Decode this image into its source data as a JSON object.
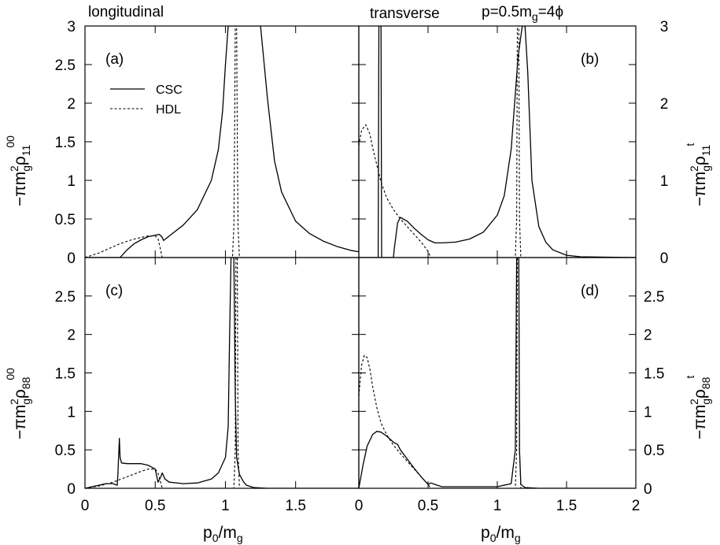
{
  "header": {
    "left_title": "longitudinal",
    "right_title": "transverse",
    "param_prefix": "p=0.5m",
    "param_sub": "g",
    "param_suffix": "=4ϕ"
  },
  "axes": {
    "x_label_main": "p",
    "x_label_sub0": "0",
    "x_label_mid": "/m",
    "x_label_subg": "g",
    "y_labels": {
      "a": {
        "pre": "−πm",
        "sub": "g",
        "sup": "2",
        "rho": "ρ",
        "idx": "11",
        "upper": "00"
      },
      "b": {
        "pre": "−πm",
        "sub": "g",
        "sup": "2",
        "rho": "ρ",
        "idx": "11",
        "upper": "t"
      },
      "c": {
        "pre": "−πm",
        "sub": "g",
        "sup": "2",
        "rho": "ρ",
        "idx": "88",
        "upper": "00"
      },
      "d": {
        "pre": "−πm",
        "sub": "g",
        "sup": "2",
        "rho": "ρ",
        "idx": "88",
        "upper": "t"
      }
    },
    "x_ticks_left": [
      "0",
      "0.5",
      "1",
      "1.5"
    ],
    "x_ticks_right": [
      "0",
      "0.5",
      "1",
      "1.5",
      "2"
    ],
    "y_ticks_top": [
      "0",
      "0.5",
      "1",
      "1.5",
      "2",
      "2.5",
      "3"
    ],
    "y_ticks_top_right": [
      "0",
      "1",
      "2",
      "3"
    ],
    "y_ticks_bottom": [
      "0",
      "0.5",
      "1",
      "1.5",
      "2",
      "2.5"
    ]
  },
  "legend": {
    "csc": "CSC",
    "hdl": "HDL"
  },
  "chart_data": [
    {
      "panel": "(a)",
      "type": "line",
      "xlim": [
        0,
        2
      ],
      "ylim": [
        0,
        3
      ],
      "series": [
        {
          "name": "CSC",
          "style": "solid",
          "x": [
            0,
            0.25,
            0.3,
            0.35,
            0.4,
            0.45,
            0.5,
            0.53,
            0.55,
            0.56,
            0.6,
            0.7,
            0.8,
            0.9,
            0.95,
            0.98,
            1.0,
            1.02,
            1.04,
            1.07,
            1.1,
            1.13,
            1.16,
            1.2,
            1.25,
            1.3,
            1.35,
            1.4,
            1.5,
            1.6,
            1.7,
            1.8,
            1.9,
            2.0
          ],
          "y": [
            0,
            0,
            0.1,
            0.18,
            0.23,
            0.27,
            0.29,
            0.3,
            0.26,
            0.22,
            0.28,
            0.42,
            0.62,
            1.0,
            1.4,
            1.9,
            2.5,
            3.0,
            3.0,
            3.0,
            3.0,
            3.0,
            3.0,
            3.0,
            3.0,
            2.05,
            1.25,
            0.85,
            0.47,
            0.31,
            0.21,
            0.14,
            0.09,
            0.06
          ]
        },
        {
          "name": "HDL",
          "style": "dashed",
          "x": [
            0,
            0.05,
            0.1,
            0.15,
            0.2,
            0.25,
            0.3,
            0.35,
            0.4,
            0.45,
            0.5,
            0.52,
            0.55,
            1.05,
            1.06,
            1.065,
            1.07,
            1.08,
            1.085,
            1.09,
            1.1,
            2.0
          ],
          "y": [
            0,
            0.03,
            0.06,
            0.1,
            0.14,
            0.18,
            0.21,
            0.24,
            0.26,
            0.28,
            0.28,
            0.25,
            0,
            0,
            0.4,
            1.5,
            3.0,
            3.0,
            1.5,
            0.4,
            0,
            0
          ]
        }
      ]
    },
    {
      "panel": "(b)",
      "type": "line",
      "xlim": [
        0,
        2
      ],
      "ylim": [
        0,
        3
      ],
      "series": [
        {
          "name": "CSC",
          "style": "solid",
          "x": [
            0,
            0.14,
            0.145,
            0.15,
            0.16,
            0.165,
            0.25,
            0.255,
            0.28,
            0.3,
            0.35,
            0.4,
            0.45,
            0.5,
            0.55,
            0.6,
            0.7,
            0.8,
            0.9,
            1.0,
            1.05,
            1.1,
            1.15,
            1.18,
            1.2,
            1.22,
            1.25,
            1.3,
            1.35,
            1.4,
            1.5,
            1.6,
            2.0
          ],
          "y": [
            0,
            0,
            3.0,
            3.0,
            3.0,
            0,
            0,
            0.1,
            0.45,
            0.52,
            0.47,
            0.38,
            0.3,
            0.23,
            0.19,
            0.19,
            0.2,
            0.24,
            0.33,
            0.55,
            0.8,
            1.4,
            2.6,
            3.0,
            3.0,
            2.4,
            1.0,
            0.4,
            0.2,
            0.1,
            0.03,
            0.01,
            0
          ]
        },
        {
          "name": "HDL",
          "style": "dashed",
          "x": [
            0,
            0.02,
            0.05,
            0.08,
            0.1,
            0.13,
            0.16,
            0.2,
            0.25,
            0.3,
            0.35,
            0.4,
            0.45,
            0.5,
            0.52,
            1.13,
            1.14,
            1.145,
            1.15,
            1.155,
            1.16,
            1.17,
            2.0
          ],
          "y": [
            1.45,
            1.65,
            1.72,
            1.6,
            1.42,
            1.2,
            0.98,
            0.78,
            0.62,
            0.5,
            0.4,
            0.3,
            0.2,
            0.08,
            0,
            0,
            0.5,
            3.0,
            3.0,
            3.0,
            0.5,
            0,
            0
          ]
        }
      ]
    },
    {
      "panel": "(c)",
      "type": "line",
      "xlim": [
        0,
        2
      ],
      "ylim": [
        0,
        3
      ],
      "series": [
        {
          "name": "CSC",
          "style": "solid",
          "x": [
            0,
            0.05,
            0.1,
            0.15,
            0.2,
            0.23,
            0.235,
            0.245,
            0.25,
            0.26,
            0.3,
            0.4,
            0.45,
            0.5,
            0.52,
            0.54,
            0.55,
            0.57,
            0.6,
            0.7,
            0.8,
            0.9,
            0.95,
            1.0,
            1.02,
            1.03,
            1.04,
            1.06,
            1.07,
            1.08,
            1.1,
            1.13,
            1.15,
            1.2,
            1.3,
            1.5,
            2.0
          ],
          "y": [
            0,
            0.02,
            0.04,
            0.06,
            0.06,
            0.04,
            0.2,
            0.65,
            0.4,
            0.33,
            0.32,
            0.32,
            0.3,
            0.25,
            0.08,
            0.15,
            0.2,
            0.12,
            0.08,
            0.06,
            0.07,
            0.12,
            0.2,
            0.4,
            0.8,
            2.0,
            3.0,
            3.0,
            1.2,
            0.4,
            0.18,
            0.08,
            0.04,
            0.01,
            0,
            0,
            0
          ]
        },
        {
          "name": "HDL",
          "style": "dashed",
          "x": [
            0,
            0.1,
            0.2,
            0.3,
            0.4,
            0.45,
            0.5,
            0.52,
            0.55,
            1.06,
            1.07,
            1.075,
            1.08,
            1.085,
            1.09,
            1.1,
            2.0
          ],
          "y": [
            0,
            0.03,
            0.08,
            0.15,
            0.22,
            0.25,
            0.25,
            0.2,
            0,
            0,
            0.5,
            3.0,
            3.0,
            3.0,
            0.5,
            0,
            0
          ]
        }
      ]
    },
    {
      "panel": "(d)",
      "type": "line",
      "xlim": [
        0,
        2
      ],
      "ylim": [
        0,
        3
      ],
      "series": [
        {
          "name": "CSC",
          "style": "solid",
          "x": [
            0,
            0.03,
            0.06,
            0.1,
            0.13,
            0.16,
            0.2,
            0.25,
            0.28,
            0.3,
            0.35,
            0.4,
            0.45,
            0.5,
            0.52,
            0.55,
            0.6,
            0.8,
            1.0,
            1.1,
            1.13,
            1.14,
            1.145,
            1.15,
            1.155,
            1.16,
            1.17,
            1.2,
            1.3,
            2.0
          ],
          "y": [
            0,
            0.3,
            0.55,
            0.7,
            0.74,
            0.73,
            0.68,
            0.6,
            0.57,
            0.5,
            0.38,
            0.26,
            0.15,
            0.05,
            0.07,
            0.05,
            0.02,
            0.02,
            0.02,
            0.06,
            0.5,
            3.0,
            3.0,
            3.0,
            3.0,
            0.5,
            0.05,
            0.01,
            0,
            0
          ]
        },
        {
          "name": "HDL",
          "style": "dashed",
          "x": [
            0,
            0.02,
            0.04,
            0.06,
            0.08,
            0.1,
            0.13,
            0.16,
            0.2,
            0.25,
            0.3,
            0.35,
            0.4,
            0.45,
            0.5,
            0.52,
            1.13,
            1.14,
            1.145,
            1.15,
            1.155,
            1.16,
            1.17,
            2.0
          ],
          "y": [
            1.2,
            1.6,
            1.73,
            1.7,
            1.55,
            1.32,
            1.05,
            0.85,
            0.7,
            0.56,
            0.45,
            0.35,
            0.25,
            0.15,
            0.05,
            0,
            0,
            0.5,
            3.0,
            3.0,
            3.0,
            0.5,
            0,
            0
          ]
        }
      ]
    }
  ]
}
